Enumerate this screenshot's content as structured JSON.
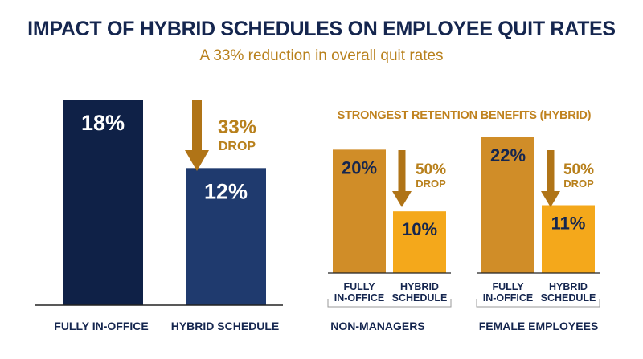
{
  "title": "IMPACT OF HYBRID SCHEDULES ON EMPLOYEE QUIT RATES",
  "subtitle": "A 33% reduction in overall quit rates",
  "colors": {
    "navy_dark": "#0f2147",
    "navy": "#1f3a6e",
    "gold": "#d08d28",
    "gold_bright": "#f4a81b",
    "accent_text": "#b8801c",
    "value_dark": "#15264f"
  },
  "chart_data": [
    {
      "type": "bar",
      "title": "",
      "categories": [
        "FULLY IN-OFFICE",
        "HYBRID SCHEDULE"
      ],
      "values": [
        18,
        12
      ],
      "value_labels": [
        "18%",
        "12%"
      ],
      "annotation": {
        "value": "33%",
        "text": "DROP"
      },
      "ylim": [
        0,
        18
      ]
    },
    {
      "type": "bar",
      "title": "STRONGEST RETENTION BENEFITS (HYBRID)",
      "groups": [
        {
          "name": "NON-MANAGERS",
          "categories": [
            [
              "FULLY",
              "IN-OFFICE"
            ],
            [
              "HYBRID",
              "SCHEDULE"
            ]
          ],
          "values": [
            20,
            10
          ],
          "value_labels": [
            "20%",
            "10%"
          ],
          "annotation": {
            "value": "50%",
            "text": "DROP"
          }
        },
        {
          "name": "FEMALE EMPLOYEES",
          "categories": [
            [
              "FULLY",
              "IN-OFFICE"
            ],
            [
              "HYBRID",
              "SCHEDULE"
            ]
          ],
          "values": [
            22,
            11
          ],
          "value_labels": [
            "22%",
            "11%"
          ],
          "annotation": {
            "value": "50%",
            "text": "DROP"
          }
        }
      ],
      "ylim": [
        0,
        22
      ]
    }
  ]
}
